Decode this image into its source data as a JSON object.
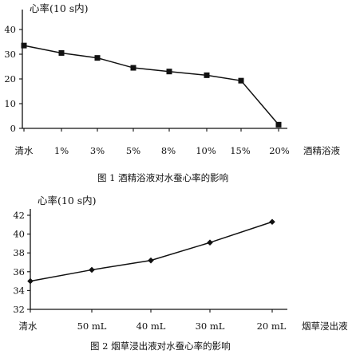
{
  "chart_data": [
    {
      "type": "line",
      "title": "心率(10 s内)",
      "caption": "图 1    酒精浴液对水蚕心率的影响",
      "categories": [
        "清水",
        "1%",
        "3%",
        "5%",
        "8%",
        "10%",
        "15%",
        "20%"
      ],
      "x_axis_name": "酒精浴液",
      "values": [
        33.5,
        30.5,
        28.5,
        24.5,
        23,
        21.5,
        19.3,
        1.5
      ],
      "ylim": [
        0,
        40
      ],
      "yticks": [
        0,
        10,
        20,
        30,
        40
      ],
      "marker": "square",
      "grid": false,
      "legend": "none"
    },
    {
      "type": "line",
      "title": "心率(10 s内)",
      "caption": "图 2    烟草浸出液对水蚕心率的影响",
      "categories": [
        "清水",
        "50 mL",
        "40 mL",
        "30 mL",
        "20 mL"
      ],
      "x_axis_name": "烟草浸出液",
      "values": [
        35,
        36.2,
        37.2,
        39.1,
        41.3
      ],
      "ylim": [
        32,
        42
      ],
      "yticks": [
        32,
        34,
        36,
        38,
        40,
        42
      ],
      "marker": "diamond",
      "grid": false,
      "legend": "none"
    }
  ]
}
